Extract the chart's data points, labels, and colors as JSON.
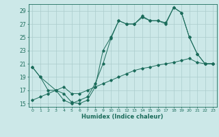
{
  "title": "",
  "xlabel": "Humidex (Indice chaleur)",
  "background_color": "#cce8e8",
  "grid_color": "#aacccc",
  "line_color": "#1a6b5a",
  "xlim": [
    -0.5,
    23.5
  ],
  "ylim": [
    14.5,
    30.0
  ],
  "yticks": [
    15,
    17,
    19,
    21,
    23,
    25,
    27,
    29
  ],
  "xticks": [
    0,
    1,
    2,
    3,
    4,
    5,
    6,
    7,
    8,
    9,
    10,
    11,
    12,
    13,
    14,
    15,
    16,
    17,
    18,
    19,
    20,
    21,
    22,
    23
  ],
  "line1_x": [
    0,
    1,
    2,
    3,
    4,
    5,
    6,
    7,
    8,
    9,
    10,
    11,
    12,
    13,
    14,
    15,
    16,
    17,
    18,
    19,
    20,
    21,
    22,
    23
  ],
  "line1_y": [
    20.5,
    19.0,
    17.0,
    17.0,
    15.5,
    15.0,
    15.5,
    16.0,
    18.0,
    21.0,
    24.8,
    27.5,
    27.0,
    27.0,
    28.0,
    27.5,
    27.5,
    27.0,
    29.5,
    28.7,
    25.0,
    22.5,
    21.0,
    21.0
  ],
  "line2_x": [
    0,
    1,
    3,
    4,
    5,
    6,
    7,
    8,
    9,
    10,
    11,
    12,
    13,
    14,
    15,
    16,
    17,
    18,
    19,
    20,
    21,
    22,
    23
  ],
  "line2_y": [
    20.5,
    19.0,
    17.0,
    16.5,
    15.2,
    15.0,
    15.5,
    17.5,
    23.0,
    25.0,
    27.5,
    27.0,
    27.0,
    28.2,
    27.5,
    27.5,
    27.2,
    29.5,
    28.7,
    25.0,
    22.5,
    21.0,
    21.0
  ],
  "line3_x": [
    0,
    1,
    2,
    3,
    4,
    5,
    6,
    7,
    8,
    9,
    10,
    11,
    12,
    13,
    14,
    15,
    16,
    17,
    18,
    19,
    20,
    21,
    22,
    23
  ],
  "line3_y": [
    15.5,
    16.0,
    16.5,
    17.0,
    17.5,
    16.5,
    16.5,
    17.0,
    17.5,
    18.0,
    18.5,
    19.0,
    19.5,
    20.0,
    20.3,
    20.5,
    20.8,
    21.0,
    21.2,
    21.5,
    21.8,
    21.2,
    21.0,
    21.0
  ]
}
